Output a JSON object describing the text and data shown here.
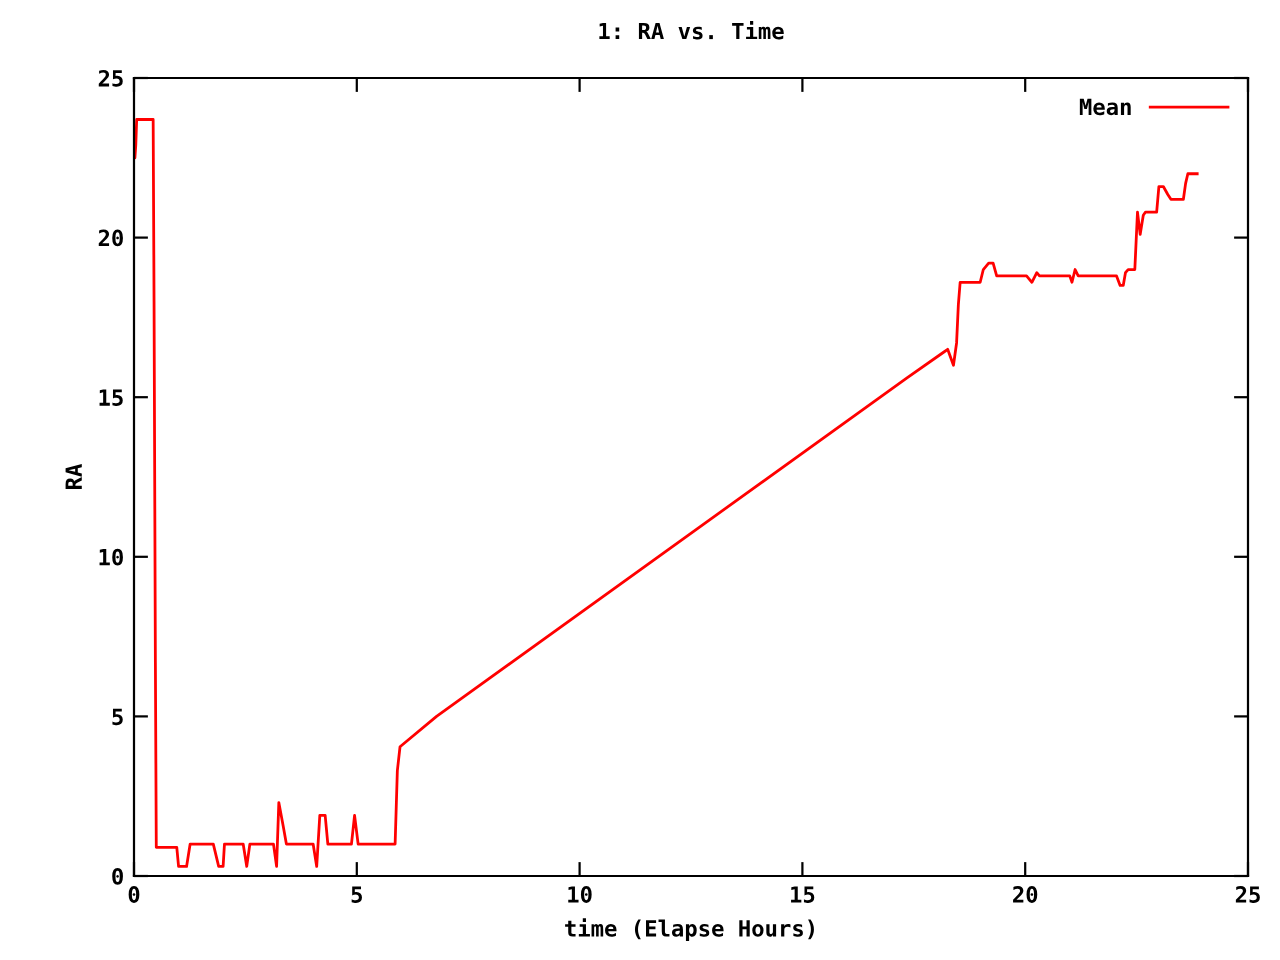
{
  "chart_data": {
    "type": "line",
    "title": "1: RA vs. Time",
    "xlabel": "time (Elapse Hours)",
    "ylabel": "RA",
    "xlim": [
      0,
      25
    ],
    "ylim": [
      0,
      25
    ],
    "xticks": [
      0,
      5,
      10,
      15,
      20,
      25
    ],
    "yticks": [
      0,
      5,
      10,
      15,
      20,
      25
    ],
    "grid": false,
    "legend": "top right",
    "marker": "none",
    "line_style": "solid",
    "series": [
      {
        "name": "Mean",
        "color": "#ff0000",
        "x": [
          0,
          0.02,
          0.04,
          0.06,
          0.08,
          0.43,
          0.45,
          0.48,
          0.5,
          0.96,
          1.0,
          1.18,
          1.26,
          1.78,
          1.9,
          2.0,
          2.03,
          2.45,
          2.53,
          2.6,
          3.13,
          3.2,
          3.25,
          3.35,
          3.42,
          4.02,
          4.1,
          4.17,
          4.29,
          4.35,
          4.88,
          4.95,
          5.03,
          5.86,
          5.91,
          5.97,
          6.79,
          17.34,
          18.16,
          18.26,
          18.39,
          18.46,
          18.5,
          18.54,
          18.99,
          19.06,
          19.18,
          19.28,
          19.36,
          20.03,
          20.15,
          20.26,
          20.32,
          21.0,
          21.05,
          21.12,
          21.19,
          22.05,
          22.13,
          22.2,
          22.25,
          22.31,
          22.46,
          22.49,
          22.52,
          22.58,
          22.65,
          22.7,
          22.95,
          23.0,
          23.1,
          23.2,
          23.27,
          23.55,
          23.6,
          23.65,
          23.86
        ],
        "values": [
          22.5,
          22.5,
          22.9,
          23.7,
          23.7,
          23.7,
          18.0,
          6.7,
          0.9,
          0.9,
          0.3,
          0.3,
          1.0,
          1.0,
          0.3,
          0.3,
          1.0,
          1.0,
          0.3,
          1.0,
          1.0,
          0.3,
          2.3,
          1.55,
          1.0,
          1.0,
          0.3,
          1.9,
          1.9,
          1.0,
          1.0,
          1.9,
          1.0,
          1.0,
          3.3,
          4.05,
          5.0,
          15.6,
          16.4,
          16.5,
          16.0,
          16.7,
          17.9,
          18.6,
          18.6,
          19.0,
          19.2,
          19.2,
          18.8,
          18.8,
          18.6,
          18.9,
          18.8,
          18.8,
          18.6,
          19.0,
          18.8,
          18.8,
          18.5,
          18.5,
          18.9,
          19.0,
          19.0,
          19.9,
          20.8,
          20.1,
          20.7,
          20.8,
          20.8,
          21.6,
          21.6,
          21.35,
          21.2,
          21.2,
          21.7,
          22.0,
          22.0
        ]
      }
    ]
  }
}
